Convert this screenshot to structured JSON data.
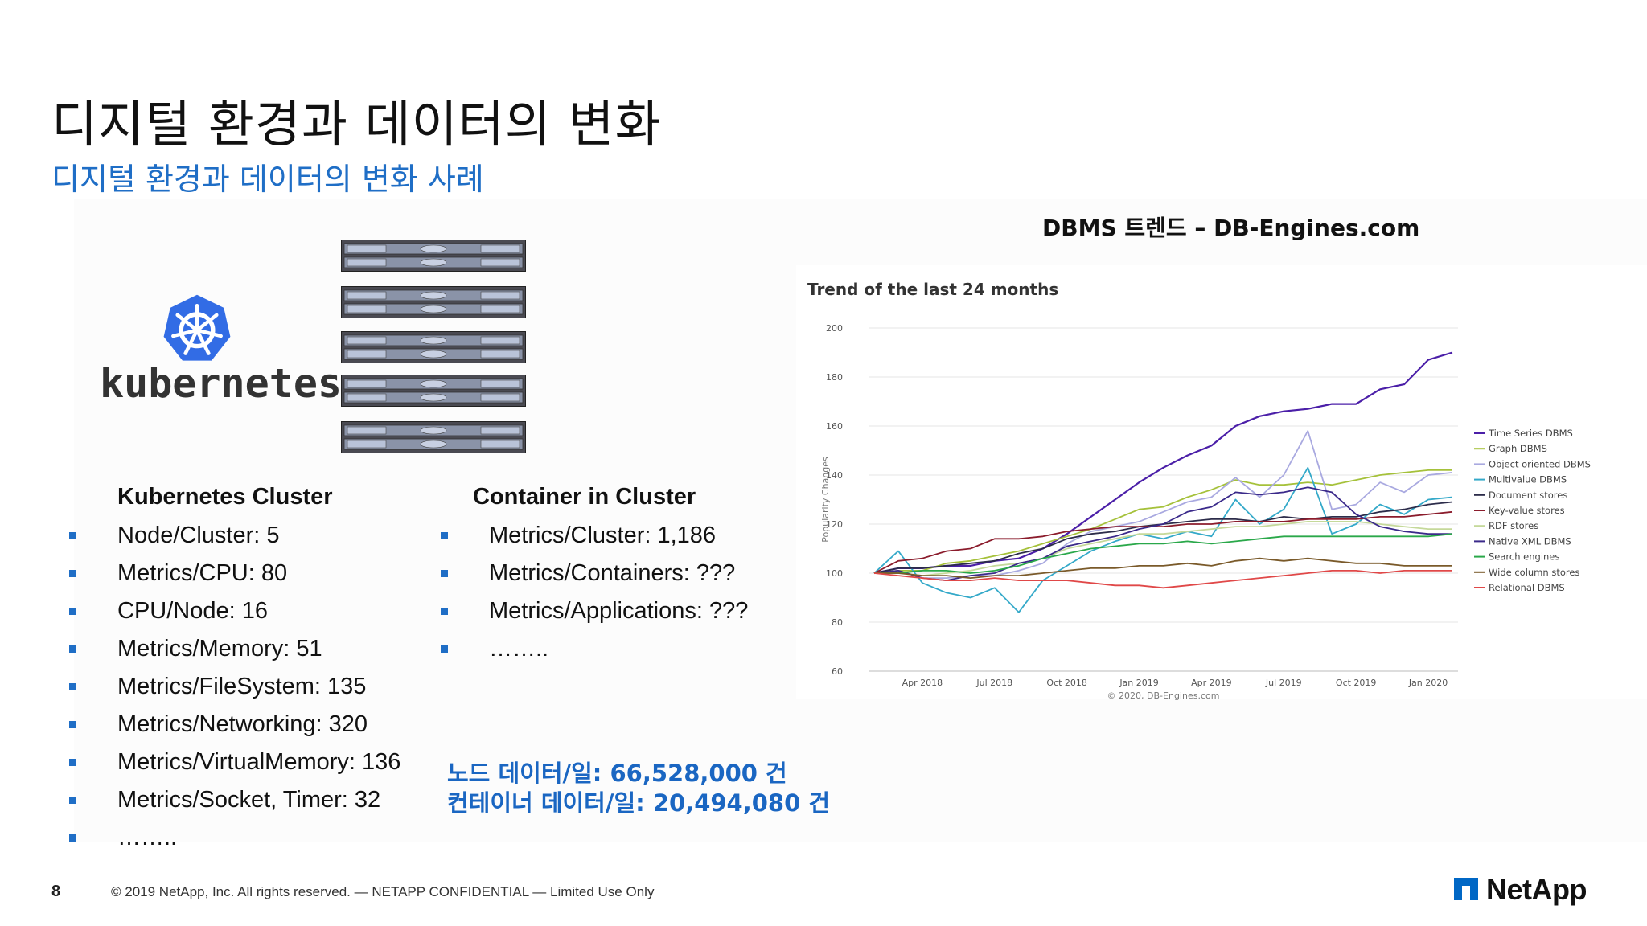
{
  "slide": {
    "title": "디지털 환경과 데이터의 변화",
    "subtitle": "디지털 환경과 데이터의 변화 사례",
    "logo_text": "kubernetes",
    "left_heading": "Kubernetes Cluster",
    "left_items": [
      "Node/Cluster: 5",
      "Metrics/CPU: 80",
      "CPU/Node: 16",
      "Metrics/Memory: 51",
      "Metrics/FileSystem: 135",
      "Metrics/Networking: 320",
      "Metrics/VirtualMemory: 136",
      "Metrics/Socket, Timer: 32",
      "…….."
    ],
    "mid_heading": "Container in Cluster",
    "mid_items": [
      "Metrics/Cluster: 1,186",
      "Metrics/Containers: ???",
      "Metrics/Applications: ???",
      "…….."
    ],
    "summary_line1": "노드 데이터/일: 66,528,000 건",
    "summary_line2": "컨테이너 데이터/일: 20,494,080 건",
    "dbms_title": "DBMS 트렌드 – DB-Engines.com"
  },
  "footer": {
    "page_number": "8",
    "copyright": "© 2019 NetApp, Inc. All rights reserved.  — NETAPP CONFIDENTIAL — Limited Use Only",
    "brand": "NetApp"
  },
  "colors": {
    "accent_blue": "#1f6ec6",
    "k8s_blue": "#326ce5",
    "netapp_blue": "#0067c5"
  },
  "chart_data": {
    "type": "line",
    "title": "Trend of the last 24 months",
    "ylabel": "Popularity Changes",
    "xlabel": "",
    "credit": "© 2020, DB-Engines.com",
    "ylim": [
      60,
      200
    ],
    "yticks": [
      60,
      80,
      100,
      120,
      140,
      160,
      180,
      200
    ],
    "x_months": [
      "Feb 2018",
      "Mar 2018",
      "Apr 2018",
      "May 2018",
      "Jun 2018",
      "Jul 2018",
      "Aug 2018",
      "Sep 2018",
      "Oct 2018",
      "Nov 2018",
      "Dec 2018",
      "Jan 2019",
      "Feb 2019",
      "Mar 2019",
      "Apr 2019",
      "May 2019",
      "Jun 2019",
      "Jul 2019",
      "Aug 2019",
      "Sep 2019",
      "Oct 2019",
      "Nov 2019",
      "Dec 2019",
      "Jan 2020",
      "Feb 2020"
    ],
    "x_tick_labels": [
      {
        "label": "Apr 2018",
        "index": 2
      },
      {
        "label": "Jul 2018",
        "index": 5
      },
      {
        "label": "Oct 2018",
        "index": 8
      },
      {
        "label": "Jan 2019",
        "index": 11
      },
      {
        "label": "Apr 2019",
        "index": 14
      },
      {
        "label": "Jul 2019",
        "index": 17
      },
      {
        "label": "Oct 2019",
        "index": 20
      },
      {
        "label": "Jan 2020",
        "index": 23
      }
    ],
    "legend_position": "right",
    "series": [
      {
        "name": "Time Series DBMS",
        "color": "#4b1fa8",
        "values": [
          100,
          102,
          102,
          103,
          103,
          105,
          106,
          110,
          116,
          123,
          130,
          137,
          143,
          148,
          152,
          160,
          164,
          166,
          167,
          169,
          169,
          175,
          177,
          187,
          190
        ]
      },
      {
        "name": "Graph DBMS",
        "color": "#a5c13a",
        "values": [
          100,
          101,
          101,
          104,
          105,
          107,
          109,
          112,
          115,
          118,
          122,
          126,
          127,
          131,
          134,
          138,
          136,
          136,
          137,
          136,
          138,
          140,
          141,
          142,
          142
        ]
      },
      {
        "name": "Object oriented DBMS",
        "color": "#a9a9e0",
        "values": [
          100,
          101,
          98,
          98,
          99,
          99,
          101,
          104,
          112,
          117,
          119,
          121,
          125,
          129,
          131,
          139,
          131,
          140,
          158,
          126,
          128,
          137,
          133,
          140,
          141
        ]
      },
      {
        "name": "Multivalue DBMS",
        "color": "#34a9c9",
        "values": [
          100,
          109,
          96,
          92,
          90,
          94,
          84,
          97,
          103,
          109,
          113,
          116,
          114,
          117,
          115,
          130,
          120,
          126,
          143,
          116,
          120,
          128,
          124,
          130,
          131
        ]
      },
      {
        "name": "Document stores",
        "color": "#2c2c4a",
        "values": [
          100,
          102,
          102,
          103,
          104,
          105,
          108,
          110,
          114,
          116,
          117,
          119,
          120,
          121,
          122,
          122,
          121,
          123,
          122,
          123,
          123,
          125,
          126,
          128,
          129
        ]
      },
      {
        "name": "Key-value stores",
        "color": "#8b1c2c",
        "values": [
          100,
          105,
          106,
          109,
          110,
          114,
          114,
          115,
          117,
          118,
          119,
          119,
          119,
          120,
          120,
          121,
          121,
          121,
          122,
          122,
          122,
          123,
          123,
          124,
          125
        ]
      },
      {
        "name": "RDF stores",
        "color": "#c5d99a",
        "values": [
          100,
          100,
          99,
          100,
          101,
          103,
          104,
          106,
          110,
          112,
          114,
          116,
          116,
          117,
          118,
          119,
          119,
          120,
          121,
          121,
          121,
          120,
          119,
          118,
          118
        ]
      },
      {
        "name": "Native XML DBMS",
        "color": "#3b2a8a",
        "values": [
          100,
          101,
          98,
          97,
          99,
          100,
          104,
          106,
          111,
          113,
          115,
          118,
          120,
          125,
          127,
          133,
          132,
          133,
          135,
          133,
          124,
          119,
          117,
          116,
          116
        ]
      },
      {
        "name": "Search engines",
        "color": "#2aa84a",
        "values": [
          100,
          100,
          101,
          101,
          100,
          101,
          103,
          106,
          108,
          110,
          111,
          112,
          112,
          113,
          112,
          113,
          114,
          115,
          115,
          115,
          115,
          115,
          115,
          115,
          116
        ]
      },
      {
        "name": "Wide column stores",
        "color": "#7a5a2a",
        "values": [
          100,
          100,
          99,
          99,
          98,
          99,
          99,
          100,
          101,
          102,
          102,
          103,
          103,
          104,
          103,
          105,
          106,
          105,
          106,
          105,
          104,
          104,
          103,
          103,
          103
        ]
      },
      {
        "name": "Relational DBMS",
        "color": "#e04848",
        "values": [
          100,
          99,
          98,
          97,
          97,
          98,
          97,
          97,
          97,
          96,
          95,
          95,
          94,
          95,
          96,
          97,
          98,
          99,
          100,
          101,
          101,
          100,
          101,
          101,
          101
        ]
      }
    ]
  }
}
